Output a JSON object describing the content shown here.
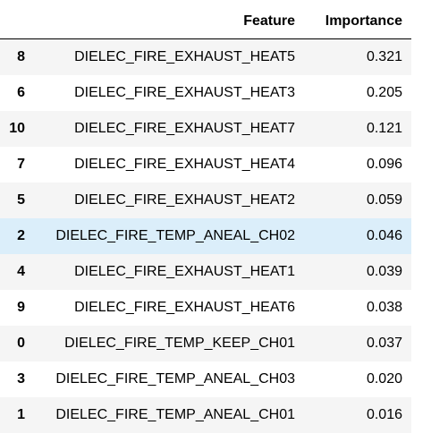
{
  "table": {
    "columns": {
      "index": "",
      "feature": "Feature",
      "importance": "Importance"
    },
    "rows": [
      {
        "index": "8",
        "feature": "DIELEC_FIRE_EXHAUST_HEAT5",
        "importance": "0.321"
      },
      {
        "index": "6",
        "feature": "DIELEC_FIRE_EXHAUST_HEAT3",
        "importance": "0.205"
      },
      {
        "index": "10",
        "feature": "DIELEC_FIRE_EXHAUST_HEAT7",
        "importance": "0.121"
      },
      {
        "index": "7",
        "feature": "DIELEC_FIRE_EXHAUST_HEAT4",
        "importance": "0.096"
      },
      {
        "index": "5",
        "feature": "DIELEC_FIRE_EXHAUST_HEAT2",
        "importance": "0.059"
      },
      {
        "index": "2",
        "feature": "DIELEC_FIRE_TEMP_ANEAL_CH02",
        "importance": "0.046"
      },
      {
        "index": "4",
        "feature": "DIELEC_FIRE_EXHAUST_HEAT1",
        "importance": "0.039"
      },
      {
        "index": "9",
        "feature": "DIELEC_FIRE_EXHAUST_HEAT6",
        "importance": "0.038"
      },
      {
        "index": "0",
        "feature": "DIELEC_FIRE_TEMP_KEEP_CH01",
        "importance": "0.037"
      },
      {
        "index": "3",
        "feature": "DIELEC_FIRE_TEMP_ANEAL_CH03",
        "importance": "0.020"
      },
      {
        "index": "1",
        "feature": "DIELEC_FIRE_TEMP_ANEAL_CH01",
        "importance": "0.016"
      }
    ],
    "colors": {
      "odd_row": "#f5f5f5",
      "even_row": "#ffffff",
      "hover_row": "#dbeefa",
      "header_rule": "#000000"
    }
  }
}
